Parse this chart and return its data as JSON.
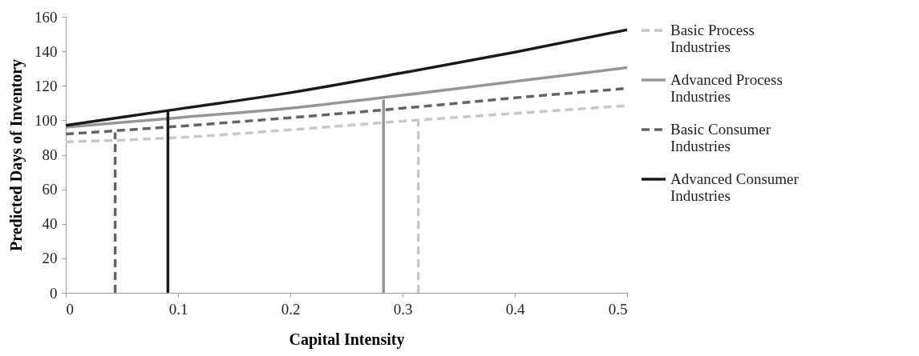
{
  "chart_data": {
    "type": "line",
    "xlabel": "Capital Intensity",
    "ylabel": "Predicted Days of Inventory",
    "xlim": [
      0,
      0.5
    ],
    "xticks": [
      0,
      0.1,
      0.2,
      0.3,
      0.4,
      0.5
    ],
    "ylim": [
      0,
      160
    ],
    "yticks": [
      0,
      20,
      40,
      60,
      80,
      100,
      120,
      140,
      160
    ],
    "grid": false,
    "legend": "right",
    "marker": "none",
    "x": [
      0,
      0.1,
      0.2,
      0.3,
      0.4,
      0.5
    ],
    "series": [
      {
        "name": "Basic Process Industries",
        "color": "#c8c8c8",
        "line_style": "dashed",
        "values": [
          87.5,
          90,
          94.5,
          99.5,
          104,
          108.5
        ]
      },
      {
        "name": "Advanced Process Industries",
        "color": "#969696",
        "line_style": "solid",
        "values": [
          96,
          101.5,
          107,
          114.5,
          122.5,
          130.5
        ]
      },
      {
        "name": "Basic Consumer Industries",
        "color": "#646464",
        "line_style": "dashed",
        "values": [
          92,
          96.5,
          101.5,
          107,
          113,
          118.5
        ]
      },
      {
        "name": "Advanced Consumer Industries",
        "color": "#1a1a1a",
        "line_style": "solid",
        "values": [
          97,
          106.5,
          116,
          127.5,
          139.5,
          152.5
        ]
      },
      {
        "color": "#c8c8c8",
        "line_style": "dashed",
        "x": [
          0.314,
          0.314
        ],
        "values": [
          0,
          99.5
        ]
      },
      {
        "color": "#969696",
        "line_style": "solid",
        "x": [
          0.283,
          0.283
        ],
        "values": [
          0,
          112
        ]
      },
      {
        "color": "#646464",
        "line_style": "dashed",
        "x": [
          0.044,
          0.044
        ],
        "values": [
          0,
          93
        ]
      },
      {
        "color": "#1a1a1a",
        "line_style": "solid",
        "x": [
          0.091,
          0.091
        ],
        "values": [
          0,
          106
        ]
      }
    ]
  }
}
